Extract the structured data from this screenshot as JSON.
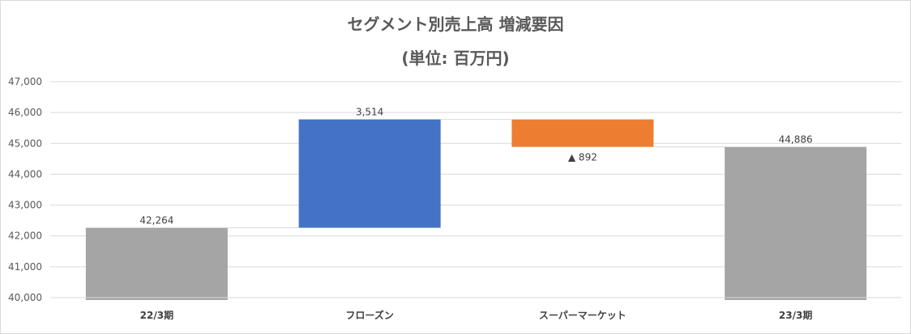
{
  "chart_data": {
    "type": "bar",
    "subtype": "waterfall",
    "title": "セグメント別売上高 増減要因",
    "subtitle": "(単位: 百万円)",
    "categories": [
      "22/3期",
      "フローズン",
      "スーパーマーケット",
      "23/3期"
    ],
    "bars": [
      {
        "category": "22/3期",
        "base": 40000,
        "top": 42264,
        "label": "42,264",
        "color": "#a5a5a5",
        "kind": "total"
      },
      {
        "category": "フローズン",
        "base": 42264,
        "top": 45778,
        "label": "3,514",
        "color": "#4472c4",
        "kind": "increase"
      },
      {
        "category": "スーパーマーケット",
        "base": 44886,
        "top": 45778,
        "label": "▲ 892",
        "color": "#ed7d31",
        "kind": "decrease"
      },
      {
        "category": "23/3期",
        "base": 40000,
        "top": 44886,
        "label": "44,886",
        "color": "#a5a5a5",
        "kind": "total"
      }
    ],
    "ylim": [
      40000,
      47000
    ],
    "yticks": [
      "40,000",
      "41,000",
      "42,000",
      "43,000",
      "44,000",
      "45,000",
      "46,000",
      "47,000"
    ],
    "grid": true,
    "legend": "none"
  }
}
